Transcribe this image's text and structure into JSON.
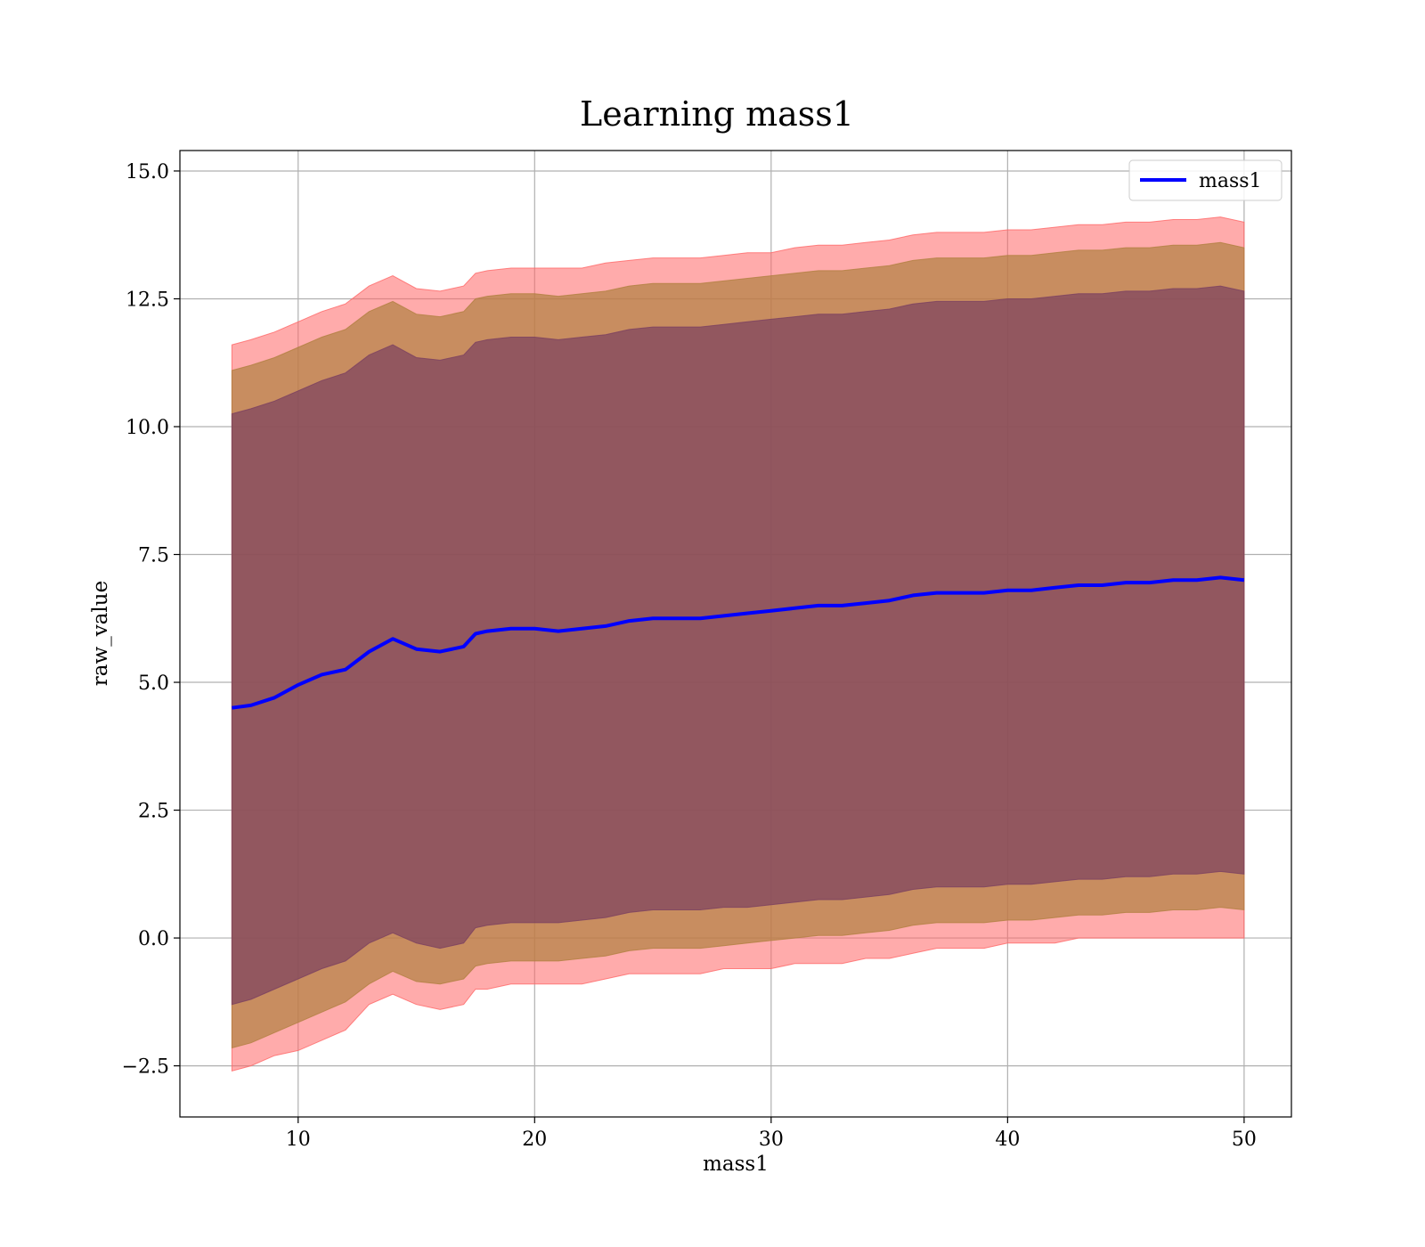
{
  "chart_data": {
    "type": "line",
    "title": "Learning mass1",
    "xlabel": "mass1",
    "ylabel": "raw_value",
    "xlim": [
      5,
      52
    ],
    "ylim": [
      -3.5,
      15.4
    ],
    "xticks": [
      10,
      20,
      30,
      40,
      50
    ],
    "xtick_labels": [
      "10",
      "20",
      "30",
      "40",
      "50"
    ],
    "yticks": [
      -2.5,
      0.0,
      2.5,
      5.0,
      7.5,
      10.0,
      12.5,
      15.0
    ],
    "ytick_labels": [
      "−2.5",
      "0.0",
      "2.5",
      "5.0",
      "7.5",
      "10.0",
      "12.5",
      "15.0"
    ],
    "grid": true,
    "legend_position": "top-right",
    "series": [
      {
        "name": "mass1",
        "color": "#0000ff",
        "x": [
          7.2,
          8.0,
          9.0,
          10.0,
          11.0,
          12.0,
          13.0,
          14.0,
          15.0,
          16.0,
          17.0,
          17.5,
          18.0,
          19.0,
          20.0,
          21.0,
          22.0,
          23.0,
          24.0,
          25.0,
          26.0,
          27.0,
          28.0,
          29.0,
          30.0,
          31.0,
          32.0,
          33.0,
          34.0,
          35.0,
          36.0,
          37.0,
          38.0,
          39.0,
          40.0,
          41.0,
          42.0,
          43.0,
          44.0,
          45.0,
          46.0,
          47.0,
          48.0,
          49.0,
          50.0
        ],
        "y": [
          4.5,
          4.55,
          4.7,
          4.95,
          5.15,
          5.25,
          5.6,
          5.85,
          5.65,
          5.6,
          5.7,
          5.95,
          6.0,
          6.05,
          6.05,
          6.0,
          6.05,
          6.1,
          6.2,
          6.25,
          6.25,
          6.25,
          6.3,
          6.35,
          6.4,
          6.45,
          6.5,
          6.5,
          6.55,
          6.6,
          6.7,
          6.75,
          6.75,
          6.75,
          6.8,
          6.8,
          6.85,
          6.9,
          6.9,
          6.95,
          6.95,
          7.0,
          7.0,
          7.05,
          7.0
        ]
      }
    ],
    "bands": [
      {
        "color": "#ff6666",
        "x": [
          7.2,
          8.0,
          9.0,
          10.0,
          11.0,
          12.0,
          13.0,
          14.0,
          15.0,
          16.0,
          17.0,
          17.5,
          18.0,
          19.0,
          20.0,
          21.0,
          22.0,
          23.0,
          24.0,
          25.0,
          26.0,
          27.0,
          28.0,
          29.0,
          30.0,
          31.0,
          32.0,
          33.0,
          34.0,
          35.0,
          36.0,
          37.0,
          38.0,
          39.0,
          40.0,
          41.0,
          42.0,
          43.0,
          44.0,
          45.0,
          46.0,
          47.0,
          48.0,
          49.0,
          50.0
        ],
        "lower": [
          -2.6,
          -2.5,
          -2.3,
          -2.2,
          -2.0,
          -1.8,
          -1.3,
          -1.1,
          -1.3,
          -1.4,
          -1.3,
          -1.0,
          -1.0,
          -0.9,
          -0.9,
          -0.9,
          -0.9,
          -0.8,
          -0.7,
          -0.7,
          -0.7,
          -0.7,
          -0.6,
          -0.6,
          -0.6,
          -0.5,
          -0.5,
          -0.5,
          -0.4,
          -0.4,
          -0.3,
          -0.2,
          -0.2,
          -0.2,
          -0.1,
          -0.1,
          -0.1,
          0.0,
          0.0,
          0.0,
          0.0,
          0.0,
          0.0,
          0.0,
          0.0
        ],
        "upper": [
          11.6,
          11.7,
          11.85,
          12.05,
          12.25,
          12.4,
          12.75,
          12.95,
          12.7,
          12.65,
          12.75,
          13.0,
          13.05,
          13.1,
          13.1,
          13.1,
          13.1,
          13.2,
          13.25,
          13.3,
          13.3,
          13.3,
          13.35,
          13.4,
          13.4,
          13.5,
          13.55,
          13.55,
          13.6,
          13.65,
          13.75,
          13.8,
          13.8,
          13.8,
          13.85,
          13.85,
          13.9,
          13.95,
          13.95,
          14.0,
          14.0,
          14.05,
          14.05,
          14.1,
          14.0
        ]
      },
      {
        "color": "#b08040",
        "x": [
          7.2,
          8.0,
          9.0,
          10.0,
          11.0,
          12.0,
          13.0,
          14.0,
          15.0,
          16.0,
          17.0,
          17.5,
          18.0,
          19.0,
          20.0,
          21.0,
          22.0,
          23.0,
          24.0,
          25.0,
          26.0,
          27.0,
          28.0,
          29.0,
          30.0,
          31.0,
          32.0,
          33.0,
          34.0,
          35.0,
          36.0,
          37.0,
          38.0,
          39.0,
          40.0,
          41.0,
          42.0,
          43.0,
          44.0,
          45.0,
          46.0,
          47.0,
          48.0,
          49.0,
          50.0
        ],
        "lower": [
          -2.15,
          -2.05,
          -1.85,
          -1.65,
          -1.45,
          -1.25,
          -0.9,
          -0.65,
          -0.85,
          -0.9,
          -0.8,
          -0.55,
          -0.5,
          -0.45,
          -0.45,
          -0.45,
          -0.4,
          -0.35,
          -0.25,
          -0.2,
          -0.2,
          -0.2,
          -0.15,
          -0.1,
          -0.05,
          0.0,
          0.05,
          0.05,
          0.1,
          0.15,
          0.25,
          0.3,
          0.3,
          0.3,
          0.35,
          0.35,
          0.4,
          0.45,
          0.45,
          0.5,
          0.5,
          0.55,
          0.55,
          0.6,
          0.55
        ],
        "upper": [
          11.1,
          11.2,
          11.35,
          11.55,
          11.75,
          11.9,
          12.25,
          12.45,
          12.2,
          12.15,
          12.25,
          12.5,
          12.55,
          12.6,
          12.6,
          12.55,
          12.6,
          12.65,
          12.75,
          12.8,
          12.8,
          12.8,
          12.85,
          12.9,
          12.95,
          13.0,
          13.05,
          13.05,
          13.1,
          13.15,
          13.25,
          13.3,
          13.3,
          13.3,
          13.35,
          13.35,
          13.4,
          13.45,
          13.45,
          13.5,
          13.5,
          13.55,
          13.55,
          13.6,
          13.5
        ]
      },
      {
        "color": "#7a4060",
        "x": [
          7.2,
          8.0,
          9.0,
          10.0,
          11.0,
          12.0,
          13.0,
          14.0,
          15.0,
          16.0,
          17.0,
          17.5,
          18.0,
          19.0,
          20.0,
          21.0,
          22.0,
          23.0,
          24.0,
          25.0,
          26.0,
          27.0,
          28.0,
          29.0,
          30.0,
          31.0,
          32.0,
          33.0,
          34.0,
          35.0,
          36.0,
          37.0,
          38.0,
          39.0,
          40.0,
          41.0,
          42.0,
          43.0,
          44.0,
          45.0,
          46.0,
          47.0,
          48.0,
          49.0,
          50.0
        ],
        "lower": [
          -1.3,
          -1.2,
          -1.0,
          -0.8,
          -0.6,
          -0.45,
          -0.1,
          0.1,
          -0.1,
          -0.2,
          -0.1,
          0.2,
          0.25,
          0.3,
          0.3,
          0.3,
          0.35,
          0.4,
          0.5,
          0.55,
          0.55,
          0.55,
          0.6,
          0.6,
          0.65,
          0.7,
          0.75,
          0.75,
          0.8,
          0.85,
          0.95,
          1.0,
          1.0,
          1.0,
          1.05,
          1.05,
          1.1,
          1.15,
          1.15,
          1.2,
          1.2,
          1.25,
          1.25,
          1.3,
          1.25
        ],
        "upper": [
          10.25,
          10.35,
          10.5,
          10.7,
          10.9,
          11.05,
          11.4,
          11.6,
          11.35,
          11.3,
          11.4,
          11.65,
          11.7,
          11.75,
          11.75,
          11.7,
          11.75,
          11.8,
          11.9,
          11.95,
          11.95,
          11.95,
          12.0,
          12.05,
          12.1,
          12.15,
          12.2,
          12.2,
          12.25,
          12.3,
          12.4,
          12.45,
          12.45,
          12.45,
          12.5,
          12.5,
          12.55,
          12.6,
          12.6,
          12.65,
          12.65,
          12.7,
          12.7,
          12.75,
          12.65
        ]
      }
    ]
  }
}
